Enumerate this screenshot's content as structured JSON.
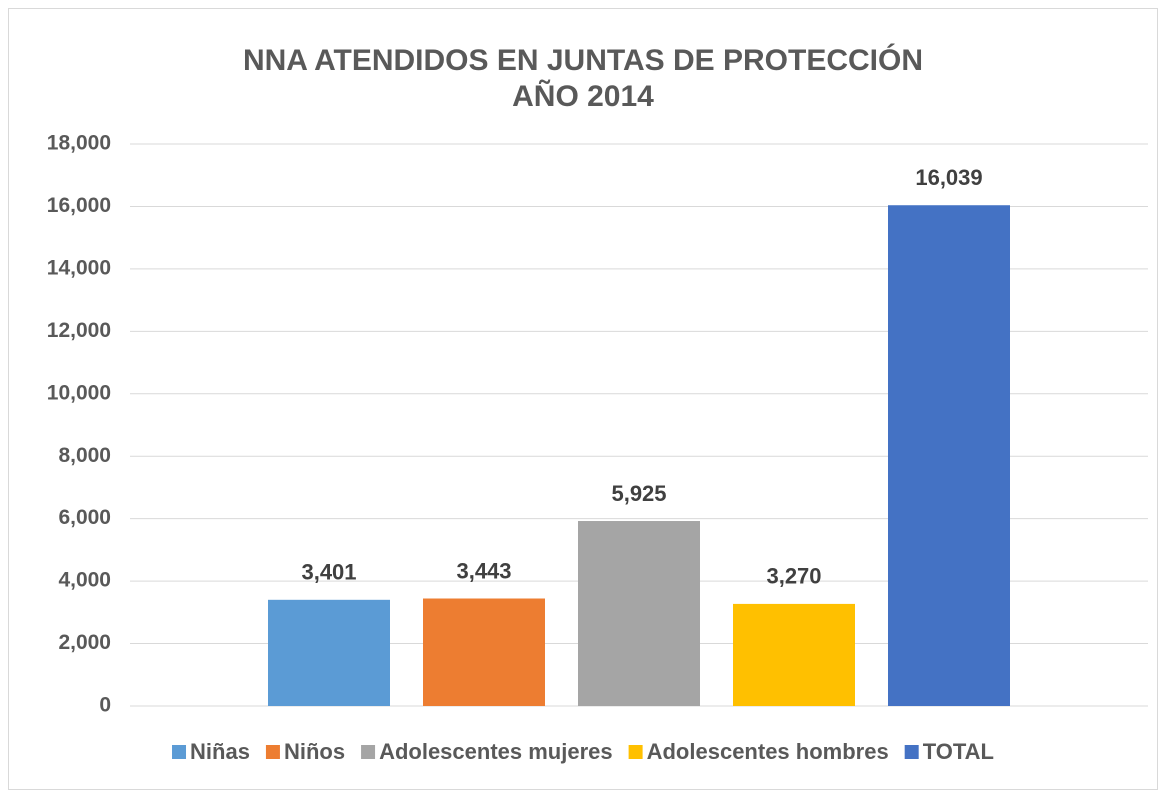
{
  "chart_data": {
    "type": "bar",
    "title": "NNA ATENDIDOS EN JUNTAS DE PROTECCIÓN",
    "subtitle": "AÑO 2014",
    "categories": [
      null
    ],
    "series": [
      {
        "name": "Niñas",
        "color": "#5b9bd5",
        "values": [
          3401
        ],
        "value_labels": [
          "3,401"
        ]
      },
      {
        "name": "Niños",
        "color": "#ed7d31",
        "values": [
          3443
        ],
        "value_labels": [
          "3,443"
        ]
      },
      {
        "name": "Adolescentes mujeres",
        "color": "#a5a5a5",
        "values": [
          5925
        ],
        "value_labels": [
          "5,925"
        ]
      },
      {
        "name": "Adolescentes hombres",
        "color": "#ffc000",
        "values": [
          3270
        ],
        "value_labels": [
          "3,270"
        ]
      },
      {
        "name": "TOTAL",
        "color": "#4472c4",
        "values": [
          16039
        ],
        "value_labels": [
          "16,039"
        ]
      }
    ],
    "ylim": [
      0,
      18000
    ],
    "yticks": [
      0,
      {
        "value": 2000,
        "label": "2,000"
      },
      {
        "value": 4000,
        "label": "4,000"
      },
      {
        "value": 6000,
        "label": "6,000"
      },
      {
        "value": 8000,
        "label": "8,000"
      },
      {
        "value": 10000,
        "label": "10,000"
      },
      {
        "value": 12000,
        "label": "12,000"
      },
      {
        "value": 14000,
        "label": "14,000"
      },
      {
        "value": 16000,
        "label": "16,000"
      },
      {
        "value": 18000,
        "label": "18,000"
      }
    ],
    "grid": true,
    "legend": "bottom"
  }
}
